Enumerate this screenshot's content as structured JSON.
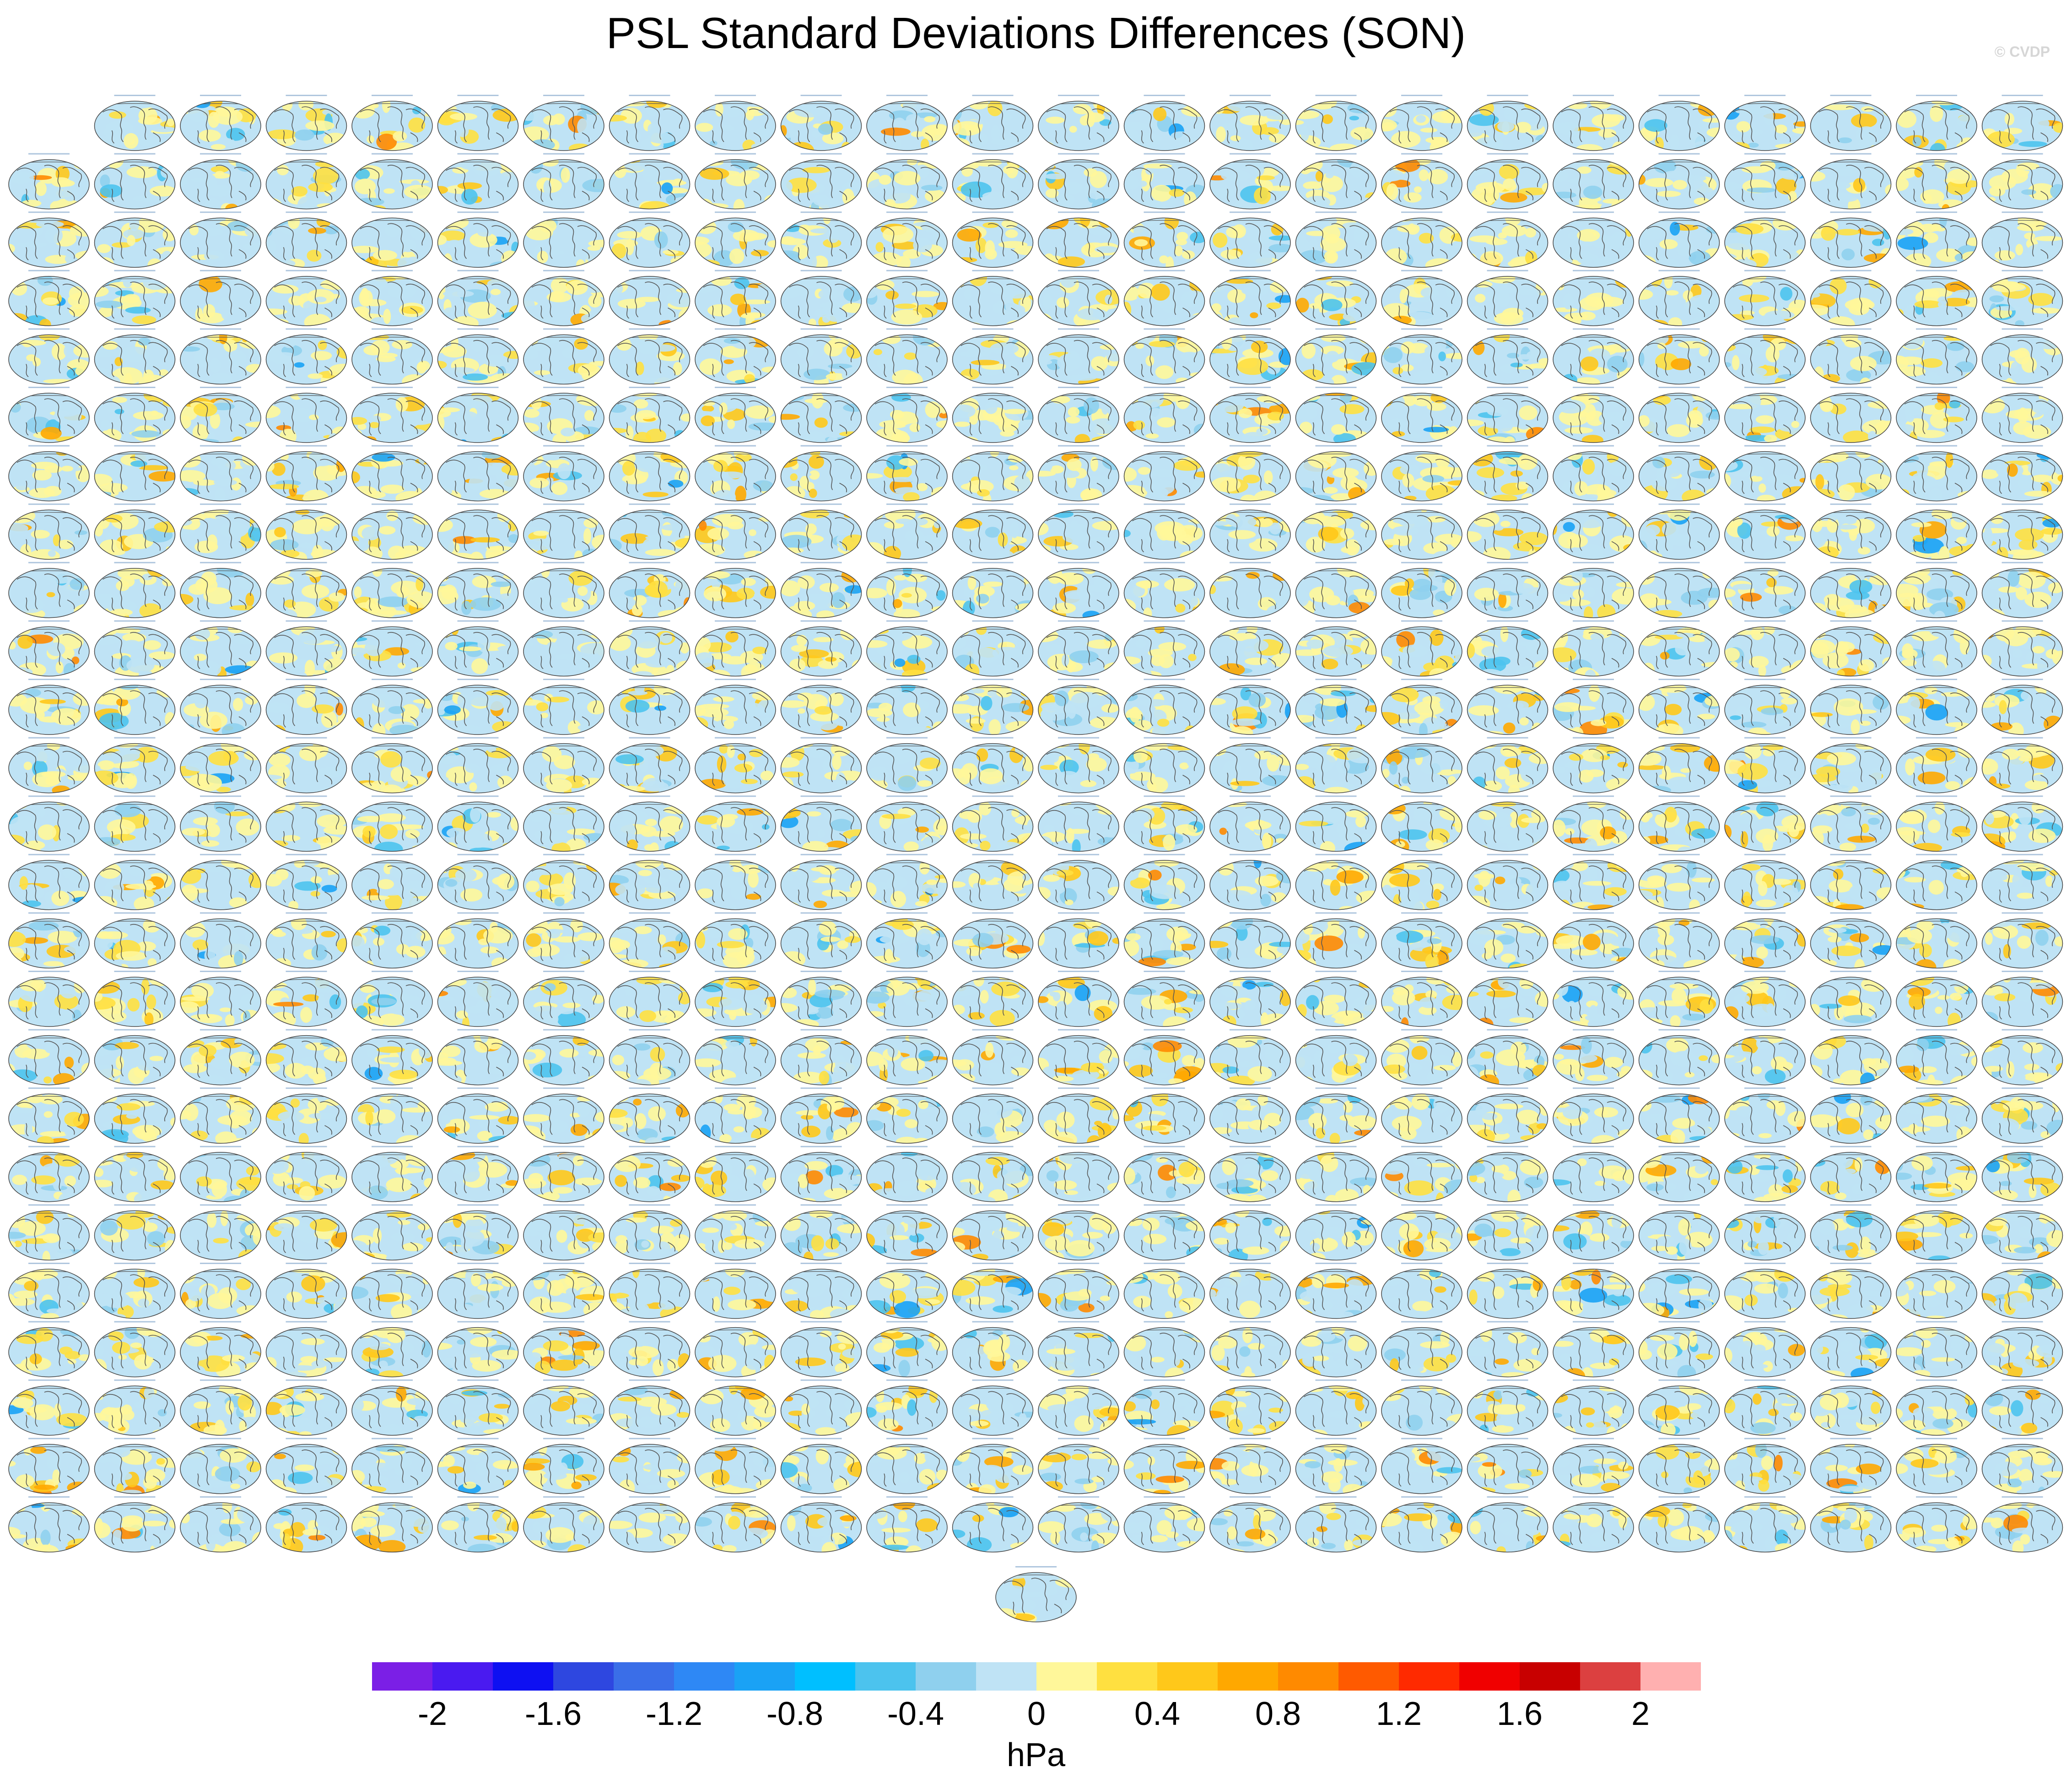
{
  "title": "PSL Standard Deviations Differences (SON)",
  "credit": "© CVDP",
  "panel_grid": {
    "rows": 26,
    "columns": 24,
    "first_row_panels": 23,
    "total_panels": 622,
    "map_projection": "global robinson, 0° centered"
  },
  "chart_data": {
    "type": "heatmap",
    "description_kind": "small-multiple global maps of PSL standard deviation differences",
    "colorbar": {
      "units": "hPa",
      "tick_labels": [
        "-2",
        "-1.6",
        "-1.2",
        "-0.8",
        "-0.4",
        "0",
        "0.4",
        "0.8",
        "1.2",
        "1.6",
        "2"
      ],
      "levels": [
        -2.2,
        -2.0,
        -1.8,
        -1.6,
        -1.4,
        -1.2,
        -1.0,
        -0.8,
        -0.6,
        -0.4,
        -0.2,
        0,
        0.2,
        0.4,
        0.6,
        0.8,
        1.0,
        1.2,
        1.4,
        1.6,
        1.8,
        2.0,
        2.2
      ],
      "colors": [
        "#7b1fe6",
        "#4a1af0",
        "#0e10f2",
        "#2e47e0",
        "#3a6ee8",
        "#2e88f5",
        "#1aa2f5",
        "#00bfff",
        "#4cc3ee",
        "#8fd0ee",
        "#bfe3f5",
        "#fff79a",
        "#ffe040",
        "#ffc81a",
        "#ffa800",
        "#ff8a00",
        "#ff5a00",
        "#ff2a00",
        "#f00000",
        "#c80000",
        "#dc4040",
        "#ffb0b0"
      ]
    }
  }
}
